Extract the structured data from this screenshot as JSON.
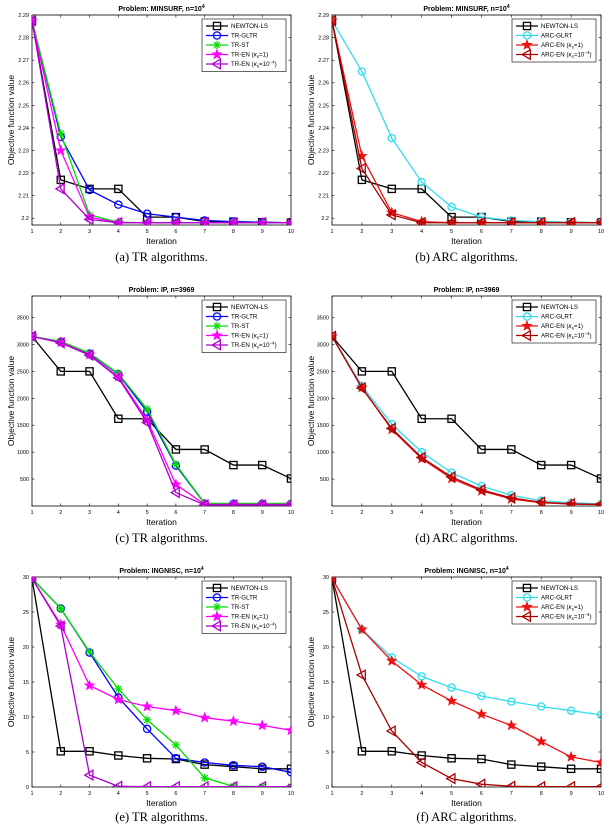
{
  "chart_data": [
    {
      "type": "line",
      "title": "Problem: MINSURF, n=10",
      "title_exponent": "4",
      "xlabel": "Iteration",
      "ylabel": "Objective function value",
      "xlim": [
        1,
        10
      ],
      "ylim": [
        2.197,
        2.29
      ],
      "xticks": [
        1,
        2,
        3,
        4,
        5,
        6,
        7,
        8,
        9,
        10
      ],
      "yticks": [
        2.2,
        2.21,
        2.22,
        2.23,
        2.24,
        2.25,
        2.26,
        2.27,
        2.28,
        2.29
      ],
      "ytick_labels": [
        "2.2",
        "2.21",
        "2.22",
        "2.23",
        "2.24",
        "2.25",
        "2.26",
        "2.27",
        "2.28",
        "2.29"
      ],
      "grid": false,
      "legend_position": "top-right",
      "caption": "(a)  TR algorithms.",
      "series": [
        {
          "name": "NEWTON-LS",
          "color": "#000000",
          "marker": "square",
          "x": [
            1,
            2,
            3,
            4,
            5,
            6,
            7,
            8,
            9,
            10
          ],
          "y": [
            2.2875,
            2.217,
            2.213,
            2.213,
            2.2005,
            2.2005,
            2.1985,
            2.1985,
            2.1982,
            2.198
          ]
        },
        {
          "name": "TR-GLTR",
          "color": "#0000ff",
          "marker": "circle",
          "x": [
            1,
            2,
            3,
            4,
            5,
            6,
            7,
            8,
            9,
            10
          ],
          "y": [
            2.2875,
            2.236,
            2.2125,
            2.206,
            2.202,
            2.2005,
            2.199,
            2.1985,
            2.1982,
            2.198
          ]
        },
        {
          "name": "TR-ST",
          "color": "#00dd00",
          "marker": "asterisk",
          "x": [
            1,
            2,
            3,
            4,
            5,
            6,
            7,
            8,
            9,
            10
          ],
          "y": [
            2.2875,
            2.2375,
            2.2015,
            2.1982,
            2.198,
            2.198,
            2.198,
            2.198,
            2.198,
            2.198
          ]
        },
        {
          "name": "TR-EN (",
          "name_math": "κ",
          "name_sub": "s",
          "name_rest": "=1)",
          "color": "#ff00ff",
          "marker": "star",
          "x": [
            1,
            2,
            3,
            4,
            5,
            6,
            7,
            8,
            9,
            10
          ],
          "y": [
            2.2875,
            2.23,
            2.2005,
            2.198,
            2.198,
            2.198,
            2.198,
            2.198,
            2.198,
            2.198
          ]
        },
        {
          "name": "TR-EN (",
          "name_math": "κ",
          "name_sub": "s",
          "name_rest": "=10",
          "name_sup": "−4",
          "name_end": ")",
          "color": "#aa00cc",
          "marker": "triangle-left",
          "x": [
            1,
            2,
            3,
            4,
            5,
            6,
            7,
            8,
            9,
            10
          ],
          "y": [
            2.2875,
            2.213,
            2.1995,
            2.198,
            2.198,
            2.198,
            2.198,
            2.198,
            2.198,
            2.198
          ]
        }
      ]
    },
    {
      "type": "line",
      "title": "Problem: MINSURF, n=10",
      "title_exponent": "4",
      "xlabel": "Iteration",
      "ylabel": "Objective function value",
      "xlim": [
        1,
        10
      ],
      "ylim": [
        2.197,
        2.29
      ],
      "xticks": [
        1,
        2,
        3,
        4,
        5,
        6,
        7,
        8,
        9,
        10
      ],
      "yticks": [
        2.2,
        2.21,
        2.22,
        2.23,
        2.24,
        2.25,
        2.26,
        2.27,
        2.28,
        2.29
      ],
      "ytick_labels": [
        "2.2",
        "2.21",
        "2.22",
        "2.23",
        "2.24",
        "2.25",
        "2.26",
        "2.27",
        "2.28",
        "2.29"
      ],
      "grid": false,
      "legend_position": "top-right",
      "caption": "(b)  ARC algorithms.",
      "series": [
        {
          "name": "NEWTON-LS",
          "color": "#000000",
          "marker": "square",
          "x": [
            1,
            2,
            3,
            4,
            5,
            6,
            7,
            8,
            9,
            10
          ],
          "y": [
            2.2875,
            2.217,
            2.213,
            2.213,
            2.2005,
            2.2005,
            2.1985,
            2.1985,
            2.1982,
            2.198
          ]
        },
        {
          "name": "ARC-GLRT",
          "color": "#33ddee",
          "marker": "circle",
          "x": [
            1,
            2,
            3,
            4,
            5,
            6,
            7,
            8,
            9,
            10
          ],
          "y": [
            2.2875,
            2.265,
            2.2355,
            2.216,
            2.205,
            2.2005,
            2.199,
            2.1985,
            2.1982,
            2.198
          ]
        },
        {
          "name": "ARC-EN (",
          "name_math": "κ",
          "name_sub": "s",
          "name_rest": "=1)",
          "color": "#ee1111",
          "marker": "star",
          "x": [
            1,
            2,
            3,
            4,
            5,
            6,
            7,
            8,
            9,
            10
          ],
          "y": [
            2.2875,
            2.2275,
            2.2025,
            2.1985,
            2.198,
            2.198,
            2.198,
            2.198,
            2.198,
            2.198
          ]
        },
        {
          "name": "ARC-EN (",
          "name_math": "κ",
          "name_sub": "s",
          "name_rest": "=10",
          "name_sup": "−4",
          "name_end": ")",
          "color": "#aa0000",
          "marker": "triangle-left",
          "x": [
            1,
            2,
            3,
            4,
            5,
            6,
            7,
            8,
            9,
            10
          ],
          "y": [
            2.2875,
            2.222,
            2.2015,
            2.198,
            2.198,
            2.198,
            2.198,
            2.198,
            2.198,
            2.198
          ]
        }
      ]
    },
    {
      "type": "line",
      "title": "Problem: IP, n=3969",
      "xlabel": "Iteration",
      "ylabel": "Objective function value",
      "xlim": [
        1,
        10
      ],
      "ylim": [
        0,
        3900
      ],
      "xticks": [
        1,
        2,
        3,
        4,
        5,
        6,
        7,
        8,
        9,
        10
      ],
      "yticks": [
        500,
        1000,
        1500,
        2000,
        2500,
        3000,
        3500
      ],
      "ytick_labels": [
        "500",
        "1000",
        "1500",
        "2000",
        "2500",
        "3000",
        "3500"
      ],
      "grid": false,
      "legend_position": "top-right",
      "caption": "(c)  TR algorithms.",
      "series": [
        {
          "name": "NEWTON-LS",
          "color": "#000000",
          "marker": "square",
          "x": [
            1,
            2,
            3,
            4,
            5,
            6,
            7,
            8,
            9,
            10
          ],
          "y": [
            3150,
            2500,
            2500,
            1620,
            1620,
            1050,
            1050,
            760,
            760,
            510
          ]
        },
        {
          "name": "TR-GLTR",
          "color": "#0000ff",
          "marker": "circle",
          "x": [
            1,
            2,
            3,
            4,
            5,
            6,
            7,
            8,
            9,
            10
          ],
          "y": [
            3150,
            3050,
            2830,
            2450,
            1750,
            750,
            45,
            40,
            40,
            40
          ]
        },
        {
          "name": "TR-ST",
          "color": "#00dd00",
          "marker": "asterisk",
          "x": [
            1,
            2,
            3,
            4,
            5,
            6,
            7,
            8,
            9,
            10
          ],
          "y": [
            3150,
            3060,
            2840,
            2460,
            1800,
            770,
            50,
            48,
            48,
            48
          ]
        },
        {
          "name": "TR-EN (",
          "name_math": "κ",
          "name_sub": "s",
          "name_rest": "=1)",
          "color": "#ff00ff",
          "marker": "star",
          "x": [
            1,
            2,
            3,
            4,
            5,
            6,
            7,
            8,
            9,
            10
          ],
          "y": [
            3150,
            3040,
            2810,
            2400,
            1600,
            400,
            30,
            30,
            30,
            30
          ]
        },
        {
          "name": "TR-EN (",
          "name_math": "κ",
          "name_sub": "s",
          "name_rest": "=10",
          "name_sup": "−4",
          "name_end": ")",
          "color": "#aa00cc",
          "marker": "triangle-left",
          "x": [
            1,
            2,
            3,
            4,
            5,
            6,
            7,
            8,
            9,
            10
          ],
          "y": [
            3150,
            3030,
            2800,
            2380,
            1550,
            250,
            20,
            20,
            20,
            20
          ]
        }
      ]
    },
    {
      "type": "line",
      "title": "Problem: IP, n=3969",
      "xlabel": "Iteration",
      "ylabel": "Objective function value",
      "xlim": [
        1,
        10
      ],
      "ylim": [
        0,
        3900
      ],
      "xticks": [
        1,
        2,
        3,
        4,
        5,
        6,
        7,
        8,
        9,
        10
      ],
      "yticks": [
        500,
        1000,
        1500,
        2000,
        2500,
        3000,
        3500
      ],
      "ytick_labels": [
        "500",
        "1000",
        "1500",
        "2000",
        "2500",
        "3000",
        "3500"
      ],
      "grid": false,
      "legend_position": "top-right",
      "caption": "(d)  ARC algorithms.",
      "series": [
        {
          "name": "NEWTON-LS",
          "color": "#000000",
          "marker": "square",
          "x": [
            1,
            2,
            3,
            4,
            5,
            6,
            7,
            8,
            9,
            10
          ],
          "y": [
            3150,
            2500,
            2500,
            1620,
            1620,
            1050,
            1050,
            760,
            760,
            510
          ]
        },
        {
          "name": "ARC-GLRT",
          "color": "#33ddee",
          "marker": "circle",
          "x": [
            1,
            2,
            3,
            4,
            5,
            6,
            7,
            8,
            9,
            10
          ],
          "y": [
            3150,
            2230,
            1520,
            1000,
            620,
            370,
            200,
            100,
            60,
            40
          ]
        },
        {
          "name": "ARC-EN (",
          "name_math": "κ",
          "name_sub": "s",
          "name_rest": "=1)",
          "color": "#ee1111",
          "marker": "star",
          "x": [
            1,
            2,
            3,
            4,
            5,
            6,
            7,
            8,
            9,
            10
          ],
          "y": [
            3150,
            2200,
            1420,
            880,
            510,
            280,
            130,
            60,
            35,
            25
          ]
        },
        {
          "name": "ARC-EN (",
          "name_math": "κ",
          "name_sub": "s",
          "name_rest": "=10",
          "name_sup": "−4",
          "name_end": ")",
          "color": "#aa0000",
          "marker": "triangle-left",
          "x": [
            1,
            2,
            3,
            4,
            5,
            6,
            7,
            8,
            9,
            10
          ],
          "y": [
            3150,
            2190,
            1440,
            900,
            540,
            300,
            150,
            70,
            40,
            30
          ]
        }
      ]
    },
    {
      "type": "line",
      "title": "Problem: INGNISC, n=10",
      "title_exponent": "4",
      "xlabel": "Iteration",
      "ylabel": "Objective function value",
      "xlim": [
        1,
        10
      ],
      "ylim": [
        0,
        30
      ],
      "xticks": [
        1,
        2,
        3,
        4,
        5,
        6,
        7,
        8,
        9,
        10
      ],
      "yticks": [
        0,
        5,
        10,
        15,
        20,
        25,
        30
      ],
      "ytick_labels": [
        "0",
        "5",
        "10",
        "15",
        "20",
        "25",
        "30"
      ],
      "grid": false,
      "legend_position": "top-right",
      "caption": "(e)  TR algorithms.",
      "series": [
        {
          "name": "NEWTON-LS",
          "color": "#000000",
          "marker": "square",
          "x": [
            1,
            2,
            3,
            4,
            5,
            6,
            7,
            8,
            9,
            10
          ],
          "y": [
            29.8,
            5.1,
            5.1,
            4.5,
            4.1,
            4.0,
            3.2,
            2.9,
            2.6,
            2.6
          ]
        },
        {
          "name": "TR-GLTR",
          "color": "#0000ff",
          "marker": "circle",
          "x": [
            1,
            2,
            3,
            4,
            5,
            6,
            7,
            8,
            9,
            10
          ],
          "y": [
            29.8,
            25.5,
            19.2,
            12.8,
            8.3,
            4.1,
            3.5,
            3.1,
            2.9,
            2.1
          ]
        },
        {
          "name": "TR-ST",
          "color": "#00dd00",
          "marker": "asterisk",
          "x": [
            1,
            2,
            3,
            4,
            5,
            6,
            7,
            8,
            9,
            10
          ],
          "y": [
            29.8,
            25.5,
            19.3,
            14.0,
            9.6,
            6.0,
            1.3,
            0.1,
            0.05,
            0.05
          ]
        },
        {
          "name": "TR-EN (",
          "name_math": "κ",
          "name_sub": "s",
          "name_rest": "=1)",
          "color": "#ff00ff",
          "marker": "star",
          "x": [
            1,
            2,
            3,
            4,
            5,
            6,
            7,
            8,
            9,
            10
          ],
          "y": [
            29.8,
            23.2,
            14.5,
            12.5,
            11.5,
            10.9,
            9.9,
            9.4,
            8.8,
            8.1
          ]
        },
        {
          "name": "TR-EN (",
          "name_math": "κ",
          "name_sub": "s",
          "name_rest": "=10",
          "name_sup": "−4",
          "name_end": ")",
          "color": "#aa00cc",
          "marker": "triangle-left",
          "x": [
            1,
            2,
            3,
            4,
            5,
            6,
            7,
            8,
            9,
            10
          ],
          "y": [
            29.8,
            23.0,
            1.7,
            0.1,
            0.05,
            0.05,
            0.05,
            0.05,
            0.05,
            0.05
          ]
        }
      ]
    },
    {
      "type": "line",
      "title": "Problem: INGNISC, n=10",
      "title_exponent": "4",
      "xlabel": "Iteration",
      "ylabel": "Objective function value",
      "xlim": [
        1,
        10
      ],
      "ylim": [
        0,
        30
      ],
      "xticks": [
        1,
        2,
        3,
        4,
        5,
        6,
        7,
        8,
        9,
        10
      ],
      "yticks": [
        0,
        5,
        10,
        15,
        20,
        25,
        30
      ],
      "ytick_labels": [
        "0",
        "5",
        "10",
        "15",
        "20",
        "25",
        "30"
      ],
      "grid": false,
      "legend_position": "top-right",
      "caption": "(f)  ARC algorithms.",
      "series": [
        {
          "name": "NEWTON-LS",
          "color": "#000000",
          "marker": "square",
          "x": [
            1,
            2,
            3,
            4,
            5,
            6,
            7,
            8,
            9,
            10
          ],
          "y": [
            29.8,
            5.1,
            5.1,
            4.5,
            4.1,
            4.0,
            3.2,
            2.9,
            2.6,
            2.6
          ]
        },
        {
          "name": "ARC-GLRT",
          "color": "#33ddee",
          "marker": "circle",
          "x": [
            1,
            2,
            3,
            4,
            5,
            6,
            7,
            8,
            9,
            10
          ],
          "y": [
            29.8,
            22.5,
            18.5,
            15.8,
            14.2,
            13.0,
            12.2,
            11.5,
            10.9,
            10.3
          ]
        },
        {
          "name": "ARC-EN (",
          "name_math": "κ",
          "name_sub": "s",
          "name_rest": "=1)",
          "color": "#ee1111",
          "marker": "star",
          "x": [
            1,
            2,
            3,
            4,
            5,
            6,
            7,
            8,
            9,
            10
          ],
          "y": [
            29.8,
            22.5,
            18.0,
            14.6,
            12.3,
            10.4,
            8.8,
            6.5,
            4.3,
            3.5
          ]
        },
        {
          "name": "ARC-EN (",
          "name_math": "κ",
          "name_sub": "s",
          "name_rest": "=10",
          "name_sup": "−4",
          "name_end": ")",
          "color": "#aa0000",
          "marker": "triangle-left",
          "x": [
            1,
            2,
            3,
            4,
            5,
            6,
            7,
            8,
            9,
            10
          ],
          "y": [
            29.8,
            16.0,
            8.0,
            3.5,
            1.2,
            0.4,
            0.1,
            0.05,
            0.05,
            0.05
          ]
        }
      ]
    }
  ]
}
